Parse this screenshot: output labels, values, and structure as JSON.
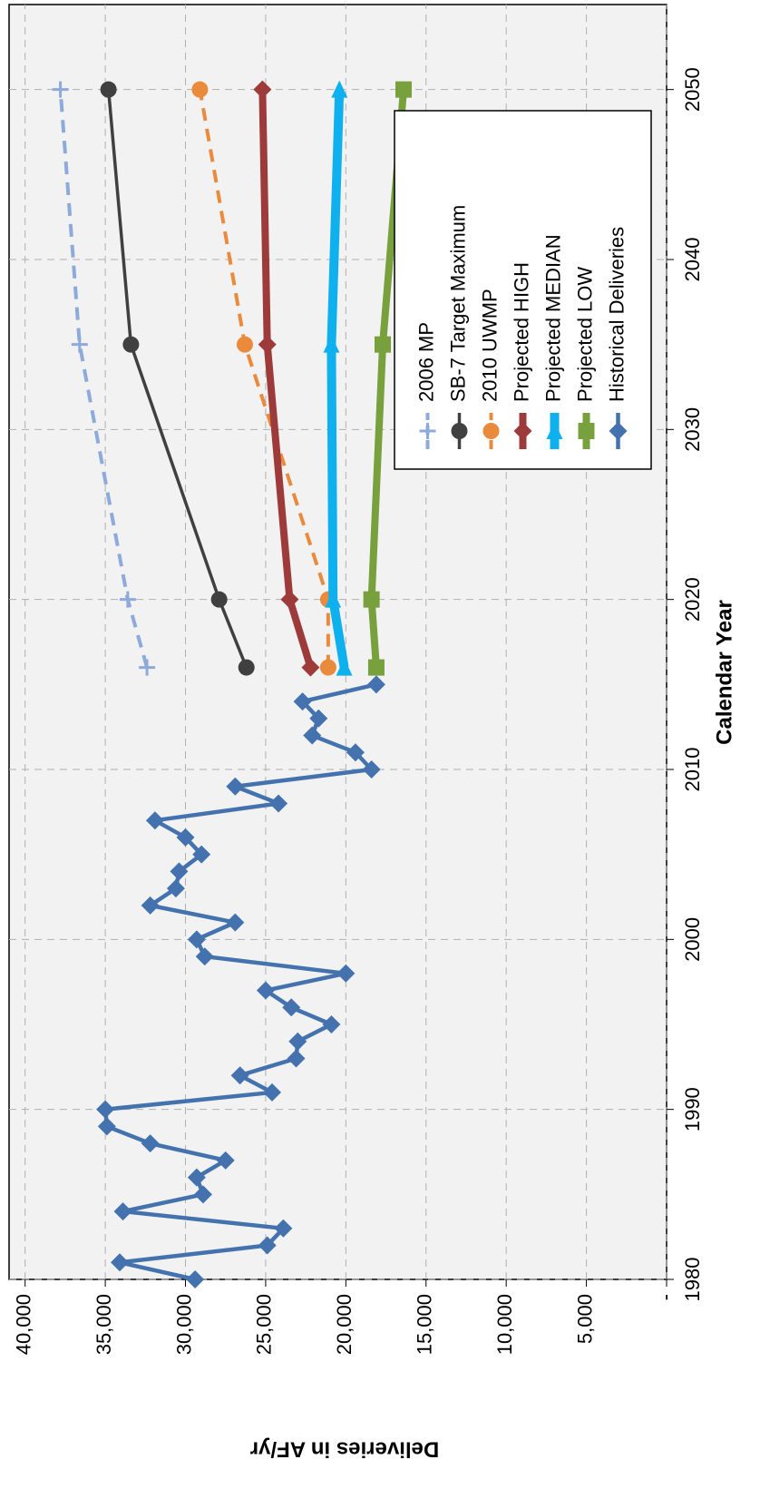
{
  "chart_data": {
    "type": "line",
    "x_label": "Calendar Year",
    "y_label": "Deliveries in AF/yr",
    "xlim": [
      1980,
      2055
    ],
    "xticks": [
      1980,
      1990,
      2000,
      2010,
      2020,
      2030,
      2040,
      2050
    ],
    "ylim": [
      0,
      41000
    ],
    "yticks": [
      {
        "value": 0,
        "label": "-"
      },
      {
        "value": 5000,
        "label": "5,000"
      },
      {
        "value": 10000,
        "label": "10,000"
      },
      {
        "value": 15000,
        "label": "15,000"
      },
      {
        "value": 20000,
        "label": "20,000"
      },
      {
        "value": 25000,
        "label": "25,000"
      },
      {
        "value": 30000,
        "label": "30,000"
      },
      {
        "value": 35000,
        "label": "35,000"
      },
      {
        "value": 40000,
        "label": "40,000"
      }
    ],
    "grid": true,
    "legend": "lower right",
    "series": [
      {
        "name": "2006 MP",
        "color": "#8eaadb",
        "dashed": true,
        "marker": "plus",
        "x": [
          2016,
          2020,
          2035,
          2050
        ],
        "values": [
          32400,
          33600,
          36600,
          37800
        ]
      },
      {
        "name": "SB-7 Target Maximum",
        "color": "#404040",
        "dashed": false,
        "marker": "circle",
        "x": [
          2016,
          2020,
          2035,
          2050
        ],
        "values": [
          26200,
          27900,
          33400,
          34800
        ]
      },
      {
        "name": "2010 UWMP",
        "color": "#e98a3c",
        "dashed": true,
        "marker": "circle",
        "x": [
          2016,
          2020,
          2035,
          2050
        ],
        "values": [
          21100,
          21100,
          26300,
          29100
        ]
      },
      {
        "name": "Projected HIGH",
        "color": "#9c3b39",
        "dashed": false,
        "marker": "diamond",
        "x": [
          2016,
          2020,
          2035,
          2050
        ],
        "values": [
          22200,
          23500,
          24900,
          25200
        ]
      },
      {
        "name": "Projected MEDIAN",
        "color": "#0fb0ee",
        "dashed": false,
        "marker": "triangle",
        "x": [
          2016,
          2020,
          2035,
          2050
        ],
        "values": [
          20100,
          20800,
          20900,
          20400
        ]
      },
      {
        "name": "Projected LOW",
        "color": "#78a03d",
        "dashed": false,
        "marker": "square",
        "x": [
          2016,
          2020,
          2035,
          2050
        ],
        "values": [
          18100,
          18400,
          17700,
          16400
        ]
      },
      {
        "name": "Historical Deliveries",
        "color": "#4372ae",
        "dashed": false,
        "marker": "diamond",
        "x": [
          1980,
          1981,
          1982,
          1983,
          1984,
          1985,
          1986,
          1987,
          1988,
          1989,
          1990,
          1991,
          1992,
          1993,
          1994,
          1995,
          1996,
          1997,
          1998,
          1999,
          2000,
          2001,
          2002,
          2003,
          2004,
          2005,
          2006,
          2007,
          2008,
          2009,
          2010,
          2011,
          2012,
          2013,
          2014,
          2015
        ],
        "values": [
          29400,
          34100,
          24900,
          23900,
          33900,
          28900,
          29300,
          27500,
          32200,
          34900,
          35000,
          24600,
          26600,
          23100,
          23000,
          20900,
          23400,
          25000,
          20000,
          28800,
          29300,
          26900,
          32200,
          30600,
          30400,
          29000,
          30000,
          31900,
          24200,
          26900,
          18400,
          19400,
          22100,
          21700,
          22700,
          18100
        ]
      }
    ]
  }
}
